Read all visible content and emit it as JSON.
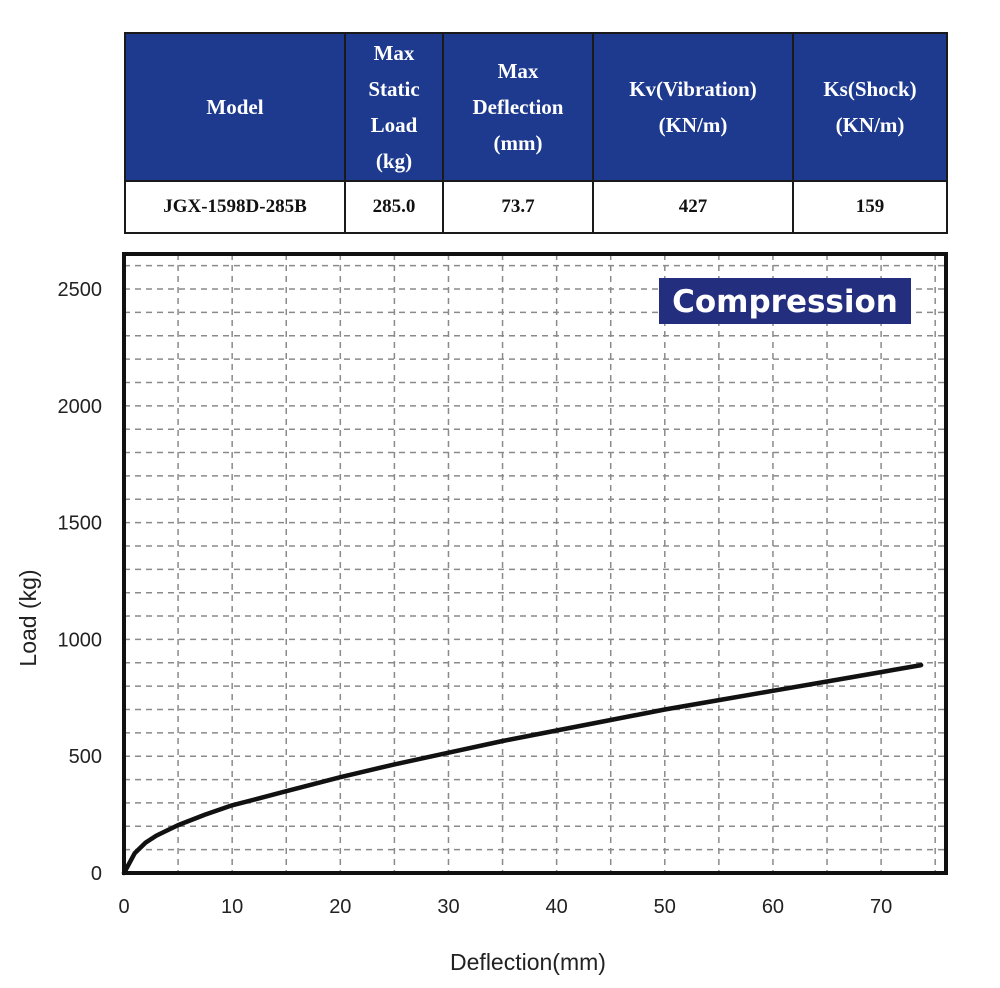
{
  "colors": {
    "header_bg": "#1e3a8f",
    "curve": "#111111",
    "grid": "#8a8a8a",
    "badge_bg": "#242e7e"
  },
  "table": {
    "headers": [
      "Model",
      "Max\nStatic\nLoad\n(kg)",
      "Max\nDeflection\n(mm)",
      "Kv(Vibration)\n(KN/m)",
      "Ks(Shock)\n(KN/m)"
    ],
    "row": [
      "JGX-1598D-285B",
      "285.0",
      "73.7",
      "427",
      "159"
    ]
  },
  "chart_data": {
    "type": "line",
    "xlabel": "Deflection(mm)",
    "ylabel": "Load (kg)",
    "xlim": [
      0,
      76
    ],
    "ylim": [
      0,
      2650
    ],
    "xticks": [
      0,
      10,
      20,
      30,
      40,
      50,
      60,
      70
    ],
    "yticks": [
      0,
      500,
      1000,
      1500,
      2000,
      2500
    ],
    "annotation": "Compression",
    "grid": true,
    "series": [
      {
        "x": [
          0,
          1,
          2,
          3,
          5,
          7.5,
          10,
          12.5,
          15,
          20,
          25,
          30,
          35,
          40,
          45,
          50,
          55,
          60,
          65,
          70,
          73.7
        ],
        "y": [
          0,
          85,
          130,
          160,
          205,
          250,
          290,
          320,
          350,
          410,
          465,
          515,
          565,
          610,
          655,
          700,
          740,
          780,
          820,
          860,
          890
        ]
      }
    ]
  }
}
